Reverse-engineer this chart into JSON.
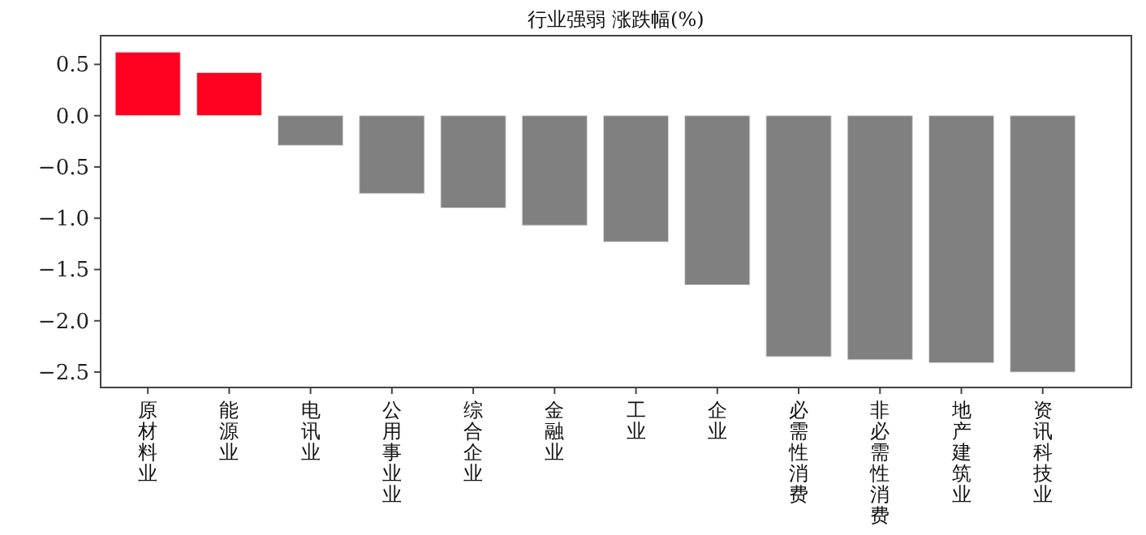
{
  "chart_data": {
    "type": "bar",
    "title": "行业强弱 涨跌幅(%)",
    "categories": [
      "原材料业",
      "能源业",
      "电讯业",
      "公用事业业",
      "综合企业",
      "金融业",
      "工业",
      "企业",
      "必需性消费",
      "非必需性消费",
      "地产建筑业",
      "资讯科技业"
    ],
    "values": [
      0.62,
      0.42,
      -0.29,
      -0.76,
      -0.9,
      -1.07,
      -1.23,
      -1.65,
      -2.35,
      -2.38,
      -2.41,
      -2.5
    ],
    "colors": [
      "#ff0020",
      "#ff0020",
      "#808080",
      "#808080",
      "#808080",
      "#808080",
      "#808080",
      "#808080",
      "#808080",
      "#808080",
      "#808080",
      "#808080"
    ],
    "ylim": [
      -2.65,
      0.78
    ],
    "yticks": [
      {
        "value": 0.5,
        "label": "0.5"
      },
      {
        "value": 0.0,
        "label": "0.0"
      },
      {
        "value": -0.5,
        "label": "−0.5"
      },
      {
        "value": -1.0,
        "label": "−1.0"
      },
      {
        "value": -1.5,
        "label": "−1.5"
      },
      {
        "value": -2.0,
        "label": "−2.0"
      },
      {
        "value": -2.5,
        "label": "−2.5"
      }
    ],
    "grid": false
  }
}
